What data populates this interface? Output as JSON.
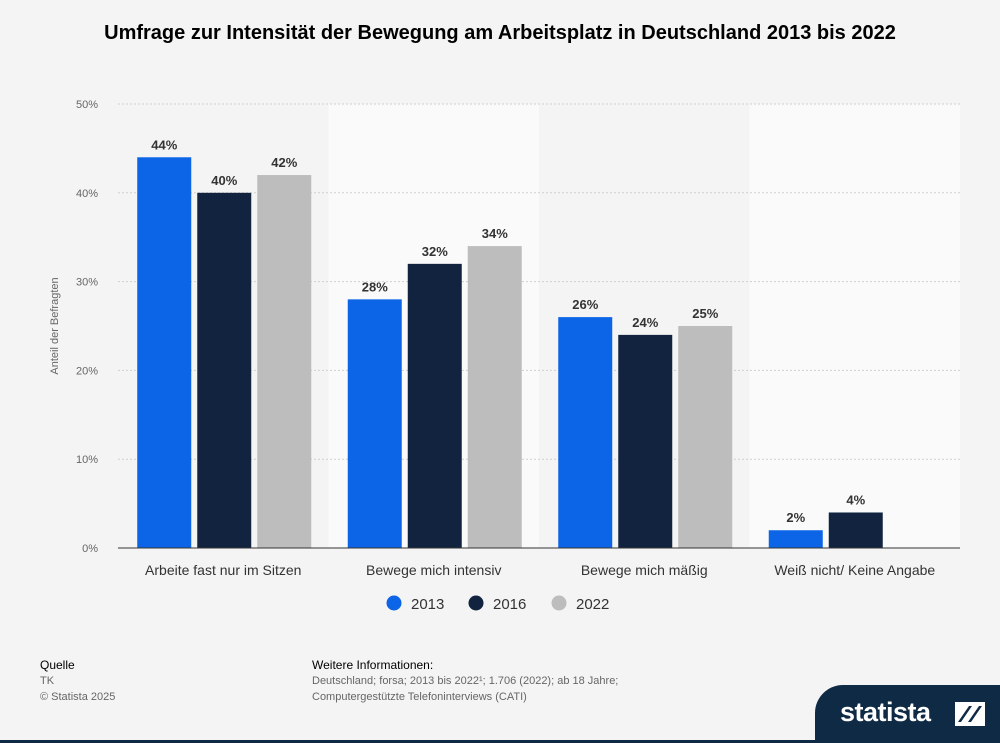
{
  "title": "Umfrage zur Intensität der Bewegung am Arbeitsplatz in Deutschland 2013 bis 2022",
  "chart_data": {
    "type": "bar",
    "title": "Umfrage zur Intensität der Bewegung am Arbeitsplatz in Deutschland 2013 bis 2022",
    "xlabel": "",
    "ylabel": "Anteil der Befragten",
    "ylim": [
      0,
      50
    ],
    "yticks": [
      0,
      10,
      20,
      30,
      40,
      50
    ],
    "ytick_labels": [
      "0%",
      "10%",
      "20%",
      "30%",
      "40%",
      "50%"
    ],
    "categories": [
      "Arbeite fast nur im Sitzen",
      "Bewege mich intensiv",
      "Bewege mich mäßig",
      "Weiß nicht/ Keine Angabe"
    ],
    "series": [
      {
        "name": "2013",
        "color": "#0b65e6",
        "values": [
          44,
          28,
          26,
          2
        ],
        "labels": [
          "44%",
          "28%",
          "26%",
          "2%"
        ]
      },
      {
        "name": "2016",
        "color": "#11233f",
        "values": [
          40,
          32,
          24,
          4
        ],
        "labels": [
          "40%",
          "32%",
          "24%",
          "4%"
        ]
      },
      {
        "name": "2022",
        "color": "#bdbdbd",
        "values": [
          42,
          34,
          25,
          null
        ],
        "labels": [
          "42%",
          "34%",
          "25%",
          null
        ]
      }
    ],
    "legend_position": "bottom-center",
    "grid": true
  },
  "footer": {
    "source_head": "Quelle",
    "source": "TK",
    "copyright": "© Statista 2025",
    "info_head": "Weitere Informationen:",
    "info_line1": "Deutschland; forsa; 2013 bis 2022¹; 1.706 (2022); ab 18 Jahre;",
    "info_line2": "Computergestützte Telefoninterviews (CATI)"
  },
  "logo": {
    "text": "statista"
  }
}
